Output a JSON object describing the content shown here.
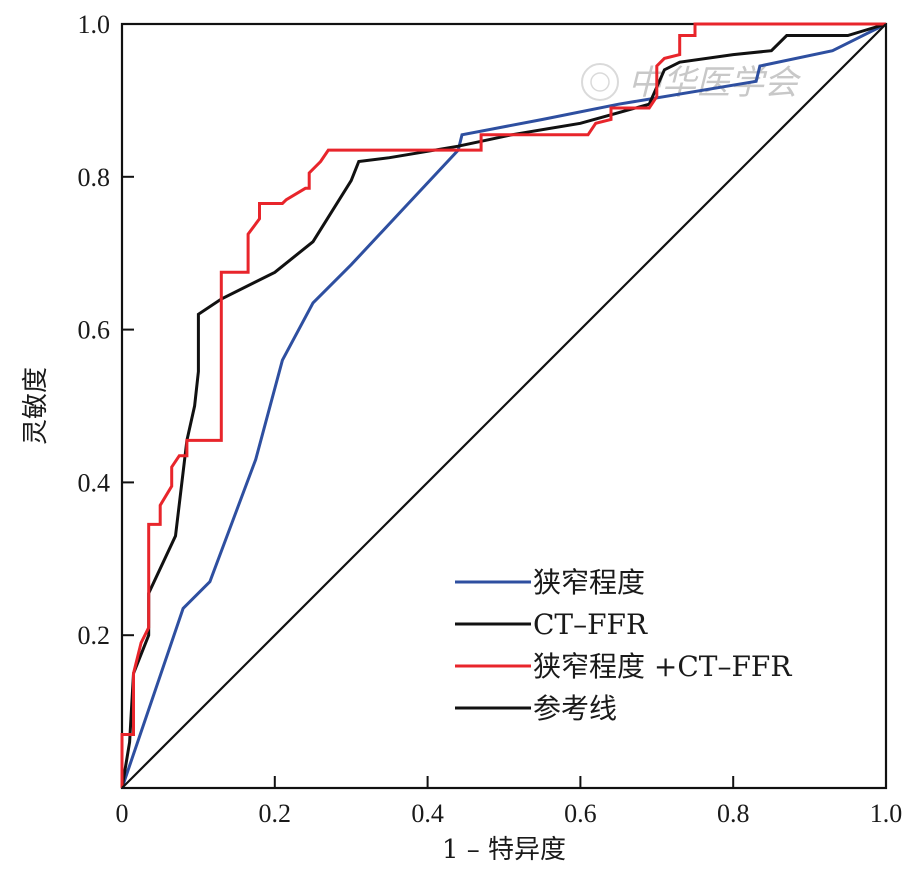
{
  "chart_data": {
    "type": "line",
    "xlabel": "1 – 特异度",
    "ylabel": "灵敏度",
    "xlim": [
      0,
      1
    ],
    "ylim": [
      0,
      1
    ],
    "x_ticks": [
      "0",
      "0.2",
      "0.4",
      "0.6",
      "0.8",
      "1.0"
    ],
    "y_ticks": [
      "0.2",
      "0.4",
      "0.6",
      "0.8",
      "1.0"
    ],
    "grid": false,
    "legend_position": "bottom-right",
    "series": [
      {
        "name": "狭窄程度",
        "color": "#2e4fa0",
        "points": [
          [
            0,
            0
          ],
          [
            0.08,
            0.235
          ],
          [
            0.115,
            0.27
          ],
          [
            0.145,
            0.35
          ],
          [
            0.175,
            0.43
          ],
          [
            0.21,
            0.56
          ],
          [
            0.25,
            0.635
          ],
          [
            0.3,
            0.685
          ],
          [
            0.37,
            0.76
          ],
          [
            0.44,
            0.835
          ],
          [
            0.445,
            0.855
          ],
          [
            0.55,
            0.875
          ],
          [
            0.65,
            0.895
          ],
          [
            0.83,
            0.925
          ],
          [
            0.835,
            0.945
          ],
          [
            0.93,
            0.965
          ],
          [
            0.96,
            0.98
          ],
          [
            1,
            1
          ]
        ]
      },
      {
        "name": "CT–FFR",
        "color": "#111111",
        "points": [
          [
            0,
            0
          ],
          [
            0.01,
            0.06
          ],
          [
            0.015,
            0.15
          ],
          [
            0.035,
            0.2
          ],
          [
            0.035,
            0.255
          ],
          [
            0.07,
            0.33
          ],
          [
            0.085,
            0.455
          ],
          [
            0.095,
            0.5
          ],
          [
            0.1,
            0.545
          ],
          [
            0.1,
            0.62
          ],
          [
            0.13,
            0.64
          ],
          [
            0.2,
            0.675
          ],
          [
            0.25,
            0.715
          ],
          [
            0.3,
            0.795
          ],
          [
            0.31,
            0.82
          ],
          [
            0.35,
            0.825
          ],
          [
            0.44,
            0.84
          ],
          [
            0.51,
            0.855
          ],
          [
            0.6,
            0.87
          ],
          [
            0.69,
            0.895
          ],
          [
            0.71,
            0.94
          ],
          [
            0.73,
            0.95
          ],
          [
            0.8,
            0.96
          ],
          [
            0.85,
            0.965
          ],
          [
            0.87,
            0.985
          ],
          [
            0.95,
            0.985
          ],
          [
            1,
            1
          ]
        ]
      },
      {
        "name": "狭窄程度 +CT–FFR",
        "color": "#e8252b",
        "step": true,
        "points": [
          [
            0,
            0
          ],
          [
            0,
            0.07
          ],
          [
            0.015,
            0.07
          ],
          [
            0.015,
            0.15
          ],
          [
            0.025,
            0.19
          ],
          [
            0.035,
            0.21
          ],
          [
            0.035,
            0.345
          ],
          [
            0.05,
            0.345
          ],
          [
            0.05,
            0.37
          ],
          [
            0.065,
            0.395
          ],
          [
            0.065,
            0.42
          ],
          [
            0.075,
            0.435
          ],
          [
            0.085,
            0.435
          ],
          [
            0.085,
            0.455
          ],
          [
            0.13,
            0.455
          ],
          [
            0.13,
            0.675
          ],
          [
            0.165,
            0.675
          ],
          [
            0.165,
            0.725
          ],
          [
            0.18,
            0.745
          ],
          [
            0.18,
            0.765
          ],
          [
            0.21,
            0.765
          ],
          [
            0.215,
            0.77
          ],
          [
            0.24,
            0.785
          ],
          [
            0.245,
            0.785
          ],
          [
            0.245,
            0.805
          ],
          [
            0.26,
            0.82
          ],
          [
            0.27,
            0.835
          ],
          [
            0.47,
            0.835
          ],
          [
            0.47,
            0.855
          ],
          [
            0.61,
            0.855
          ],
          [
            0.62,
            0.87
          ],
          [
            0.64,
            0.875
          ],
          [
            0.64,
            0.89
          ],
          [
            0.69,
            0.89
          ],
          [
            0.7,
            0.905
          ],
          [
            0.7,
            0.945
          ],
          [
            0.71,
            0.955
          ],
          [
            0.73,
            0.96
          ],
          [
            0.73,
            0.985
          ],
          [
            0.75,
            0.985
          ],
          [
            0.75,
            1
          ],
          [
            1,
            1
          ]
        ]
      },
      {
        "name": "参考线",
        "color": "#111111",
        "points": [
          [
            0,
            0
          ],
          [
            1,
            1
          ]
        ]
      }
    ]
  },
  "watermark": "中华医学会"
}
